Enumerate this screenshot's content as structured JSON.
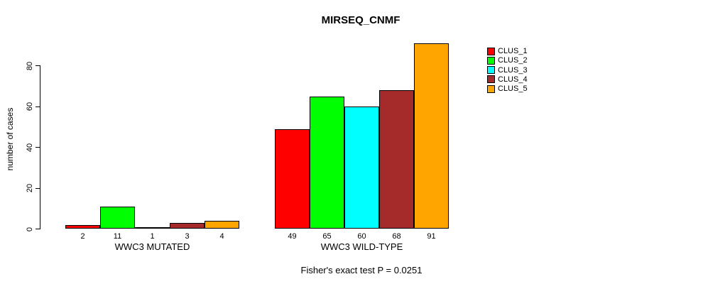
{
  "chart_data": {
    "type": "bar",
    "title": "MIRSEQ_CNMF",
    "xlabel": "",
    "ylabel": "number of cases",
    "ylim": [
      0,
      91
    ],
    "yticks": [
      0,
      20,
      40,
      60,
      80
    ],
    "grid": false,
    "legend_position": "right",
    "annotation": "Fisher's exact test P = 0.0251",
    "series_names": [
      "CLUS_1",
      "CLUS_2",
      "CLUS_3",
      "CLUS_4",
      "CLUS_5"
    ],
    "series_colors": [
      "#FF0000",
      "#00FF00",
      "#00FFFF",
      "#A52A2A",
      "#FFA500"
    ],
    "groups": [
      {
        "label": "WWC3 MUTATED",
        "values": [
          2,
          11,
          1,
          3,
          4
        ]
      },
      {
        "label": "WWC3 WILD-TYPE",
        "values": [
          49,
          65,
          60,
          68,
          91
        ]
      }
    ],
    "bar_value_labels": [
      [
        2,
        11,
        1,
        3,
        4
      ],
      [
        49,
        65,
        60,
        68,
        91
      ]
    ]
  },
  "colors": {
    "background": "#FFFFFF",
    "axis": "#000000",
    "text": "#000000"
  }
}
